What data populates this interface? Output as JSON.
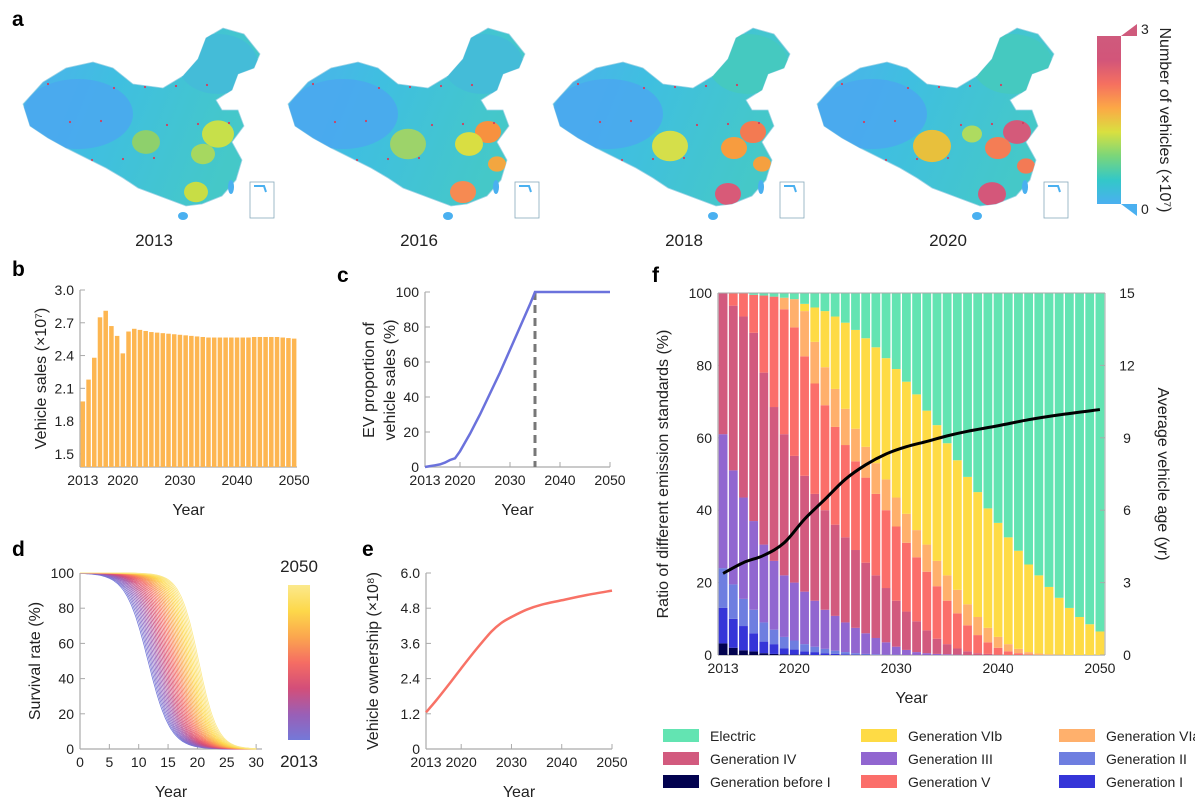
{
  "panel_labels": {
    "a": "a",
    "b": "b",
    "c": "c",
    "d": "d",
    "e": "e",
    "f": "f"
  },
  "chart_data": [
    {
      "id": "a",
      "type": "map",
      "years": [
        "2013",
        "2016",
        "2018",
        "2020"
      ],
      "colorbar": {
        "label": "Number of vehicles (×10⁷)",
        "min": "0",
        "max": "3",
        "colors": [
          "#4ab0f0",
          "#33c8c8",
          "#7ad67a",
          "#d9e040",
          "#fca846",
          "#f57060",
          "#d2557a",
          "#cf5a7c"
        ]
      }
    },
    {
      "id": "b",
      "type": "bar",
      "xlabel": "Year",
      "ylabel": "Vehicle sales (×10⁷)",
      "ylim": [
        1.38,
        3.0
      ],
      "xticks": [
        "2013",
        "2020",
        "2030",
        "2040",
        "2050"
      ],
      "yticks": [
        "1.5",
        "1.8",
        "2.1",
        "2.4",
        "2.7",
        "3.0"
      ],
      "color": "#fdb651",
      "categories": [
        2013,
        2014,
        2015,
        2016,
        2017,
        2018,
        2019,
        2020,
        2021,
        2022,
        2023,
        2024,
        2025,
        2026,
        2027,
        2028,
        2029,
        2030,
        2031,
        2032,
        2033,
        2034,
        2035,
        2036,
        2037,
        2038,
        2039,
        2040,
        2041,
        2042,
        2043,
        2044,
        2045,
        2046,
        2047,
        2048,
        2049,
        2050
      ],
      "values": [
        1.98,
        2.18,
        2.38,
        2.75,
        2.81,
        2.67,
        2.58,
        2.42,
        2.62,
        2.645,
        2.635,
        2.625,
        2.615,
        2.61,
        2.605,
        2.6,
        2.595,
        2.59,
        2.585,
        2.58,
        2.575,
        2.57,
        2.565,
        2.565,
        2.565,
        2.565,
        2.565,
        2.565,
        2.565,
        2.565,
        2.57,
        2.57,
        2.57,
        2.57,
        2.57,
        2.565,
        2.56,
        2.555
      ]
    },
    {
      "id": "c",
      "type": "line",
      "xlabel": "Year",
      "ylabel": "EV proportion of vehicle sales (%)",
      "ylabel_lines": [
        "EV proportion of",
        "vehicle sales (%)"
      ],
      "xlim": [
        2013,
        2050
      ],
      "ylim": [
        0,
        100
      ],
      "xticks": [
        "2013",
        "2020",
        "2030",
        "2040",
        "2050"
      ],
      "yticks": [
        "0",
        "20",
        "40",
        "60",
        "80",
        "100"
      ],
      "color": "#6b72dc",
      "x": [
        2013,
        2014,
        2015,
        2016,
        2017,
        2018,
        2019,
        2020,
        2021,
        2022,
        2023,
        2024,
        2025,
        2026,
        2027,
        2028,
        2029,
        2030,
        2031,
        2032,
        2033,
        2034,
        2035,
        2040,
        2045,
        2050
      ],
      "y": [
        0,
        0.5,
        1,
        1.5,
        2.5,
        4,
        5,
        9,
        14,
        19,
        24.5,
        30,
        36,
        42,
        48,
        54,
        60.5,
        67,
        73.5,
        80,
        86.5,
        93,
        100,
        100,
        100,
        100
      ],
      "vline": {
        "x": 2035,
        "style": "dashed",
        "color": "#777777"
      }
    },
    {
      "id": "d",
      "type": "line",
      "xlabel": "Year",
      "ylabel": "Survival rate (%)",
      "xlim": [
        0,
        31
      ],
      "ylim": [
        0,
        100
      ],
      "xticks": [
        "0",
        "5",
        "10",
        "15",
        "20",
        "25",
        "30"
      ],
      "yticks": [
        "0",
        "20",
        "40",
        "60",
        "80",
        "100"
      ],
      "series_years": [
        2013,
        2050
      ],
      "median_lifetime_range": [
        11.6,
        20.2
      ],
      "curve_count": 38,
      "colorbar": {
        "top": "2050",
        "bottom": "2013",
        "colors": [
          "#7478d8",
          "#9a5fb6",
          "#d34e79",
          "#f56d63",
          "#fba74e",
          "#fdd84a",
          "#fbe98c"
        ]
      }
    },
    {
      "id": "e",
      "type": "line",
      "xlabel": "Year",
      "ylabel": "Vehicle ownership (×10⁸)",
      "xlim": [
        2013,
        2050
      ],
      "ylim": [
        0,
        6
      ],
      "xticks": [
        "2013",
        "2020",
        "2030",
        "2040",
        "2050"
      ],
      "yticks": [
        "0",
        "1.2",
        "2.4",
        "3.6",
        "4.8",
        "6.0"
      ],
      "color": "#f87266",
      "x": [
        2013,
        2015,
        2018,
        2020,
        2023,
        2026,
        2028,
        2030,
        2033,
        2036,
        2040,
        2045,
        2050
      ],
      "y": [
        1.25,
        1.65,
        2.3,
        2.75,
        3.4,
        4.0,
        4.3,
        4.5,
        4.75,
        4.92,
        5.07,
        5.25,
        5.4
      ]
    },
    {
      "id": "f",
      "type": "bar",
      "stacked": true,
      "xlabel": "Year",
      "ylabel": "Ratio of different emission standards (%)",
      "y2label": "Average vehicle age (yr)",
      "ylim": [
        0,
        100
      ],
      "y2lim": [
        0,
        15
      ],
      "xticks": [
        "2013",
        "2020",
        "2030",
        "2040",
        "2050"
      ],
      "yticks": [
        "0",
        "20",
        "40",
        "60",
        "80",
        "100"
      ],
      "y2ticks": [
        "0",
        "3",
        "6",
        "9",
        "12",
        "15"
      ],
      "series": [
        {
          "name": "Generation before I",
          "color": "#02024f"
        },
        {
          "name": "Generation I",
          "color": "#3535d8"
        },
        {
          "name": "Generation II",
          "color": "#6e7ee0"
        },
        {
          "name": "Generation III",
          "color": "#9166d0"
        },
        {
          "name": "Generation IV",
          "color": "#d25a7e"
        },
        {
          "name": "Generation V",
          "color": "#fb6e6a"
        },
        {
          "name": "Generation VIa",
          "color": "#ffb06c"
        },
        {
          "name": "Generation VIb",
          "color": "#fedb45"
        },
        {
          "name": "Electric",
          "color": "#63e4b2"
        }
      ],
      "categories": [
        2013,
        2014,
        2015,
        2016,
        2017,
        2018,
        2019,
        2020,
        2021,
        2022,
        2023,
        2024,
        2025,
        2026,
        2027,
        2028,
        2029,
        2030,
        2031,
        2032,
        2033,
        2034,
        2035,
        2036,
        2037,
        2038,
        2039,
        2040,
        2041,
        2042,
        2043,
        2044,
        2045,
        2046,
        2047,
        2048,
        2049,
        2050
      ],
      "cumulative_top_percent": [
        [
          3.2,
          13,
          24,
          61,
          100,
          100,
          100,
          100
        ],
        [
          2,
          10,
          19.5,
          51,
          96.5,
          100,
          100,
          100
        ],
        [
          1.3,
          8,
          15.5,
          43.5,
          93.5,
          100,
          100,
          100
        ],
        [
          1,
          6,
          12.5,
          37,
          89,
          99.5,
          99.5,
          99.5
        ],
        [
          0.5,
          3.7,
          9,
          30.5,
          78,
          99.3,
          99.3,
          99.3
        ],
        [
          0.3,
          3,
          7,
          26,
          68.5,
          99,
          99,
          99
        ],
        [
          0.2,
          1.8,
          5,
          22,
          61,
          95.5,
          98.7,
          98.7
        ],
        [
          0.1,
          1.5,
          4,
          20,
          55,
          90.5,
          98.3,
          98.3
        ],
        [
          0.1,
          1,
          3,
          17.5,
          49.5,
          82.5,
          95,
          97
        ],
        [
          0,
          0.8,
          2.3,
          15,
          44.5,
          75,
          86.5,
          96
        ],
        [
          0,
          0.5,
          1.7,
          12.5,
          40,
          69,
          79.5,
          95
        ],
        [
          0,
          0.3,
          1.2,
          10.8,
          36,
          63,
          73.5,
          93.5
        ],
        [
          0,
          0.2,
          0.8,
          9,
          32.5,
          58,
          68,
          91.8
        ],
        [
          0,
          0.1,
          0.5,
          7.5,
          29,
          53.5,
          62.5,
          89.8
        ],
        [
          0,
          0.1,
          0.3,
          6,
          25.5,
          49,
          57.5,
          87.5
        ],
        [
          0,
          0,
          0.2,
          4.7,
          22,
          44.5,
          53,
          85
        ],
        [
          0,
          0,
          0.1,
          3.5,
          18.5,
          40,
          48.5,
          82
        ],
        [
          0,
          0,
          0.1,
          2.3,
          15,
          35.5,
          43.5,
          79
        ],
        [
          0,
          0,
          0,
          1.4,
          12,
          31,
          39,
          75.5
        ],
        [
          0,
          0,
          0,
          0.8,
          9.3,
          27,
          34.5,
          72
        ],
        [
          0,
          0,
          0,
          0.5,
          6.8,
          23,
          30.5,
          67.5
        ],
        [
          0,
          0,
          0,
          0.3,
          4.5,
          19,
          26,
          63.5
        ],
        [
          0,
          0,
          0,
          0.2,
          3,
          15,
          22,
          58.5
        ],
        [
          0,
          0,
          0,
          0.1,
          1.8,
          11.5,
          18,
          53.8
        ],
        [
          0,
          0,
          0,
          0,
          1,
          8.2,
          14,
          49.2
        ],
        [
          0,
          0,
          0,
          0,
          0.5,
          5.5,
          10.5,
          45
        ],
        [
          0,
          0,
          0,
          0,
          0.3,
          3.5,
          7.5,
          40.5
        ],
        [
          0,
          0,
          0,
          0,
          0.1,
          2,
          5,
          36.5
        ],
        [
          0,
          0,
          0,
          0,
          0,
          1,
          3,
          32.5
        ],
        [
          0,
          0,
          0,
          0,
          0,
          0.5,
          1.7,
          28.8
        ],
        [
          0,
          0,
          0,
          0,
          0,
          0.2,
          0.8,
          25
        ],
        [
          0,
          0,
          0,
          0,
          0,
          0,
          0.4,
          22
        ],
        [
          0,
          0,
          0,
          0,
          0,
          0,
          0.2,
          18.8
        ],
        [
          0,
          0,
          0,
          0,
          0,
          0,
          0.1,
          15.8
        ],
        [
          0,
          0,
          0,
          0,
          0,
          0,
          0,
          13
        ],
        [
          0,
          0,
          0,
          0,
          0,
          0,
          0,
          10.5
        ],
        [
          0,
          0,
          0,
          0,
          0,
          0,
          0,
          8.5
        ],
        [
          0,
          0,
          0,
          0,
          0,
          0,
          0,
          6.5
        ]
      ],
      "age_line": {
        "x": [
          2013,
          2015,
          2017,
          2019,
          2021,
          2023,
          2025,
          2027,
          2029,
          2031,
          2033,
          2035,
          2037,
          2040,
          2043,
          2046,
          2050
        ],
        "y": [
          3.38,
          3.83,
          4.13,
          4.65,
          5.63,
          6.45,
          7.28,
          7.88,
          8.33,
          8.63,
          8.85,
          9.08,
          9.27,
          9.5,
          9.75,
          9.95,
          10.17
        ],
        "color": "#000000"
      },
      "legend_order": [
        8,
        7,
        6,
        4,
        3,
        2,
        0,
        5,
        1
      ]
    }
  ]
}
